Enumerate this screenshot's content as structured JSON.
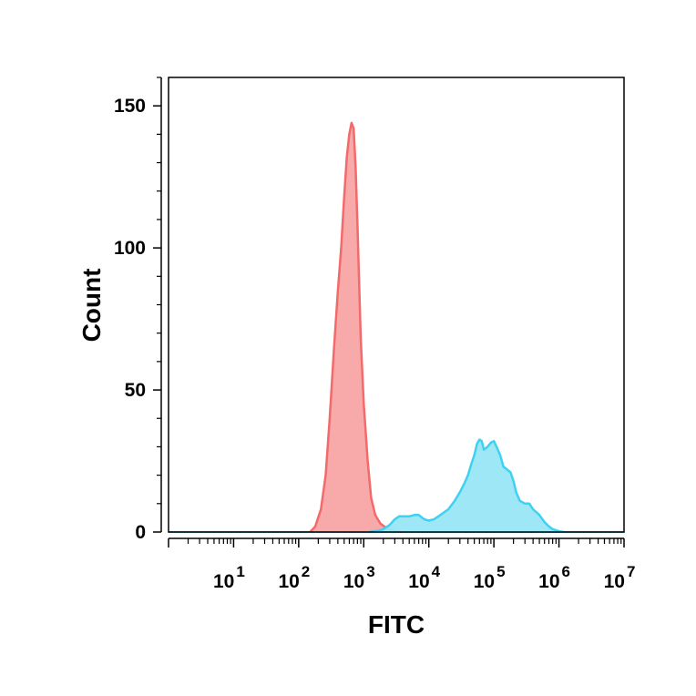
{
  "chart_data": {
    "type": "area",
    "title": "",
    "xlabel": "FITC",
    "ylabel": "Count",
    "xscale": "log",
    "xlim": [
      1,
      10000000
    ],
    "ylim": [
      0,
      160
    ],
    "grid": false,
    "y_ticks": [
      0,
      50,
      100,
      150
    ],
    "y_tick_labels": [
      "0",
      "50",
      "100",
      "150"
    ],
    "x_ticks": [
      {
        "base": "10",
        "exp": "1"
      },
      {
        "base": "10",
        "exp": "2"
      },
      {
        "base": "10",
        "exp": "3"
      },
      {
        "base": "10",
        "exp": "4"
      },
      {
        "base": "10",
        "exp": "5"
      },
      {
        "base": "10",
        "exp": "6"
      },
      {
        "base": "10",
        "exp": "7"
      }
    ],
    "series": [
      {
        "fill": "#f8a5a5",
        "stroke": "#f26a6a",
        "points": [
          [
            150,
            0
          ],
          [
            180,
            2
          ],
          [
            220,
            8
          ],
          [
            260,
            20
          ],
          [
            300,
            40
          ],
          [
            350,
            65
          ],
          [
            400,
            85
          ],
          [
            450,
            100
          ],
          [
            500,
            118
          ],
          [
            550,
            132
          ],
          [
            600,
            140
          ],
          [
            650,
            144
          ],
          [
            700,
            142
          ],
          [
            750,
            128
          ],
          [
            800,
            108
          ],
          [
            850,
            88
          ],
          [
            900,
            68
          ],
          [
            1000,
            45
          ],
          [
            1150,
            25
          ],
          [
            1300,
            12
          ],
          [
            1500,
            6
          ],
          [
            1800,
            3
          ],
          [
            2200,
            1.5
          ],
          [
            2600,
            0.8
          ],
          [
            3000,
            0.4
          ],
          [
            4000,
            0
          ]
        ]
      },
      {
        "fill": "#99e6f7",
        "stroke": "#3fd1f2",
        "points": [
          [
            1200,
            0
          ],
          [
            1600,
            0.4
          ],
          [
            2000,
            1
          ],
          [
            2500,
            2.5
          ],
          [
            3000,
            4.5
          ],
          [
            3500,
            5.5
          ],
          [
            4200,
            5.5
          ],
          [
            5000,
            5.5
          ],
          [
            6000,
            6
          ],
          [
            7000,
            6
          ],
          [
            8500,
            4.5
          ],
          [
            10000,
            4
          ],
          [
            12000,
            4.5
          ],
          [
            15000,
            6
          ],
          [
            20000,
            8
          ],
          [
            25000,
            11
          ],
          [
            30000,
            14
          ],
          [
            35000,
            17
          ],
          [
            40000,
            20
          ],
          [
            45000,
            24
          ],
          [
            50000,
            27
          ],
          [
            55000,
            31
          ],
          [
            60000,
            32.5
          ],
          [
            65000,
            32
          ],
          [
            70000,
            29
          ],
          [
            80000,
            30
          ],
          [
            90000,
            31.5
          ],
          [
            100000,
            32
          ],
          [
            110000,
            30
          ],
          [
            125000,
            27
          ],
          [
            140000,
            23
          ],
          [
            160000,
            22
          ],
          [
            180000,
            21
          ],
          [
            200000,
            18
          ],
          [
            220000,
            14
          ],
          [
            250000,
            11
          ],
          [
            300000,
            10
          ],
          [
            350000,
            10
          ],
          [
            400000,
            8
          ],
          [
            500000,
            6
          ],
          [
            600000,
            3.5
          ],
          [
            700000,
            2
          ],
          [
            800000,
            1
          ],
          [
            1000000,
            0.3
          ],
          [
            1200000,
            0
          ]
        ]
      }
    ]
  }
}
